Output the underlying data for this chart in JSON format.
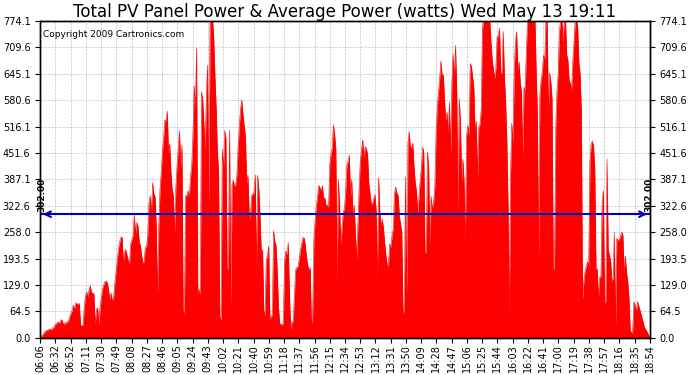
{
  "title": "Total PV Panel Power & Average Power (watts) Wed May 13 19:11",
  "copyright": "Copyright 2009 Cartronics.com",
  "average_power": 302.0,
  "y_max": 774.1,
  "y_min": 0.0,
  "y_ticks": [
    0.0,
    64.5,
    129.0,
    193.5,
    258.0,
    322.6,
    387.1,
    451.6,
    516.1,
    580.6,
    645.1,
    709.6,
    774.1
  ],
  "bar_color": "#FF0000",
  "avg_line_color": "#0000BB",
  "grid_color": "#BBBBBB",
  "background_color": "#FFFFFF",
  "x_labels": [
    "06:06",
    "06:32",
    "06:52",
    "07:11",
    "07:30",
    "07:49",
    "08:08",
    "08:27",
    "08:46",
    "09:05",
    "09:24",
    "09:43",
    "10:02",
    "10:21",
    "10:40",
    "10:59",
    "11:18",
    "11:37",
    "11:56",
    "12:15",
    "12:34",
    "12:53",
    "13:12",
    "13:31",
    "13:50",
    "14:09",
    "14:28",
    "14:47",
    "15:06",
    "15:25",
    "15:44",
    "16:03",
    "16:22",
    "16:41",
    "17:00",
    "17:19",
    "17:38",
    "17:57",
    "18:16",
    "18:35",
    "18:54"
  ],
  "title_fontsize": 12,
  "tick_fontsize": 7,
  "copyright_fontsize": 6.5,
  "figsize": [
    6.9,
    3.75
  ],
  "dpi": 100
}
